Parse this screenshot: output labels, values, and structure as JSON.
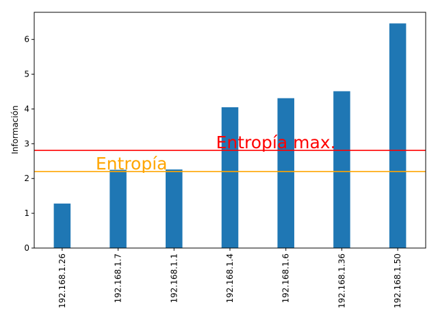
{
  "chart_data": {
    "type": "bar",
    "categories": [
      "192.168.1.26",
      "192.168.1.7",
      "192.168.1.1",
      "192.168.1.4",
      "192.168.1.6",
      "192.168.1.36",
      "192.168.1.50"
    ],
    "values": [
      1.28,
      2.25,
      2.26,
      4.05,
      4.31,
      4.51,
      6.46
    ],
    "bar_color": "#1f77b4",
    "title": "",
    "xlabel": "",
    "ylabel": "Información",
    "ylim": [
      0,
      6.78
    ],
    "yticks": [
      0,
      1,
      2,
      3,
      4,
      5,
      6
    ],
    "grid": false,
    "lines": [
      {
        "label": "Entropía",
        "y": 2.2,
        "color": "#ffa500"
      },
      {
        "label": "Entropía max.",
        "y": 2.81,
        "color": "#ff0000"
      }
    ]
  }
}
